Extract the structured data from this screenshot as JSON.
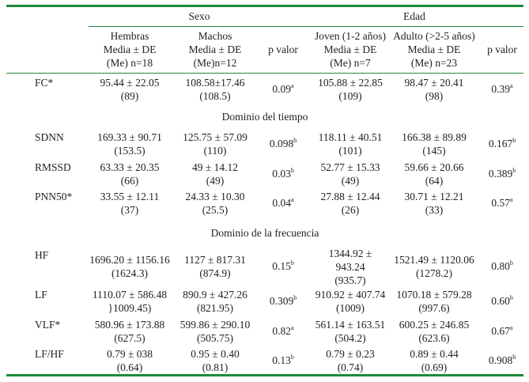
{
  "header": {
    "group_sexo": "Sexo",
    "group_edad": "Edad",
    "col_hembras": [
      "Hembras",
      "Media ± DE",
      "(Me) n=18"
    ],
    "col_machos": [
      "Machos",
      "Media ± DE",
      "(Me)n=12"
    ],
    "col_pvalor1": "p valor",
    "col_joven": [
      "Joven (1-2 años)",
      "Media ± DE",
      "(Me) n=7"
    ],
    "col_adulto": [
      "Adulto (>2-5 años)",
      "Media ± DE",
      "(Me) n=23"
    ],
    "col_pvalor2": "p valor"
  },
  "sections": {
    "tiempo": "Dominio del tiempo",
    "frecuencia": "Dominio de la frecuencia"
  },
  "rows": {
    "fc": {
      "label": "FC*",
      "hem": [
        "95.44 ± 22.05",
        "(89)"
      ],
      "mac": [
        "108.58±17.46",
        "(108.5)"
      ],
      "p1": "0.09",
      "p1s": "a",
      "jov": [
        "105.88 ± 22.85",
        "(109)"
      ],
      "adu": [
        "98.47 ± 20.41",
        "(98)"
      ],
      "p2": "0.39",
      "p2s": "a"
    },
    "sdnn": {
      "label": "SDNN",
      "hem": [
        "169.33 ± 90.71",
        "(153.5)"
      ],
      "mac": [
        "125.75 ± 57.09",
        "(110)"
      ],
      "p1": "0.098",
      "p1s": "b",
      "jov": [
        "118.11 ± 40.51",
        "(101)"
      ],
      "adu": [
        "166.38 ± 89.89",
        "(145)"
      ],
      "p2": "0.167",
      "p2s": "b"
    },
    "rmssd": {
      "label": "RMSSD",
      "hem": [
        "63.33 ± 20.35",
        "(66)"
      ],
      "mac": [
        "49 ± 14.12",
        "(49)"
      ],
      "p1": "0.03",
      "p1s": "b",
      "jov": [
        "52.77 ± 15.33",
        "(49)"
      ],
      "adu": [
        "59.66 ± 20.66",
        "(64)"
      ],
      "p2": "0.389",
      "p2s": "b"
    },
    "pnn50": {
      "label": "PNN50*",
      "hem": [
        "33.55 ± 12.11",
        "(37)"
      ],
      "mac": [
        "24.33 ± 10.30",
        "(25.5)"
      ],
      "p1": "0.04",
      "p1s": "a",
      "jov": [
        "27.88 ± 12.44",
        "(26)"
      ],
      "adu": [
        "30.71 ± 12.21",
        "(33)"
      ],
      "p2": "0.57",
      "p2s": "a"
    },
    "hf": {
      "label": "HF",
      "hem": [
        "1696.20 ± 1156.16",
        "(1624.3)"
      ],
      "mac": [
        "1127 ± 817.31",
        "(874.9)"
      ],
      "p1": "0.15",
      "p1s": "b",
      "jov": [
        "1344.92 ±",
        "943.24",
        "(935.7)"
      ],
      "adu": [
        "1521.49 ± 1120.06",
        "(1278.2)"
      ],
      "p2": "0.80",
      "p2s": "b"
    },
    "lf": {
      "label": "LF",
      "hem": [
        "1110.07 ± 586.48",
        "}1009.45)"
      ],
      "mac": [
        "890.9 ± 427.26",
        "(821.95)"
      ],
      "p1": "0.309",
      "p1s": "b",
      "jov": [
        "910.92 ± 407.74",
        "(1009)"
      ],
      "adu": [
        "1070.18 ± 579.28",
        "(997.6)"
      ],
      "p2": "0.60",
      "p2s": "b"
    },
    "vlf": {
      "label": "VLF*",
      "hem": [
        "580.96 ± 173.88",
        "(627.5)"
      ],
      "mac": [
        "599.86 ± 290.10",
        "(505.75)"
      ],
      "p1": "0.82",
      "p1s": "a",
      "jov": [
        "561.14 ± 163.51",
        "(504.2)"
      ],
      "adu": [
        "600.25 ± 246.85",
        "(623.6)"
      ],
      "p2": "0.67",
      "p2s": "a"
    },
    "lfhf": {
      "label": "LF/HF",
      "hem": [
        "0.79 ± 038",
        "(0.64)"
      ],
      "mac": [
        "0.95 ± 0.40",
        "(0.81)"
      ],
      "p1": "0.13",
      "p1s": "b",
      "jov": [
        "0.79 ± 0.23",
        "(0.74)"
      ],
      "adu": [
        "0.89 ± 0.44",
        "(0.69)"
      ],
      "p2": "0.908",
      "p2s": "b"
    }
  },
  "colors": {
    "rule": "#1f8a3c",
    "text": "#222222"
  }
}
